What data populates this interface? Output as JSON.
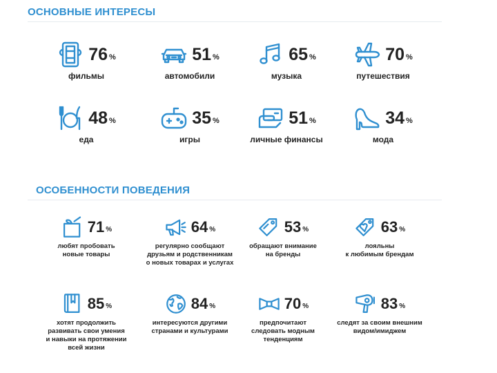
{
  "colors": {
    "accent": "#2f8fd0",
    "text": "#222222"
  },
  "interests": {
    "title": "ОСНОВНЫЕ ИНТЕРЕСЫ",
    "items": [
      {
        "icon": "film-ticket-icon",
        "value": "76",
        "unit": "%",
        "label": "фильмы"
      },
      {
        "icon": "car-icon",
        "value": "51",
        "unit": "%",
        "label": "автомобили"
      },
      {
        "icon": "music-note-icon",
        "value": "65",
        "unit": "%",
        "label": "музыка"
      },
      {
        "icon": "airplane-icon",
        "value": "70",
        "unit": "%",
        "label": "путешествия"
      },
      {
        "icon": "plate-fork-knife-icon",
        "value": "48",
        "unit": "%",
        "label": "еда"
      },
      {
        "icon": "gamepad-icon",
        "value": "35",
        "unit": "%",
        "label": "игры"
      },
      {
        "icon": "money-icon",
        "value": "51",
        "unit": "%",
        "label": "личные финансы"
      },
      {
        "icon": "high-heel-icon",
        "value": "34",
        "unit": "%",
        "label": "мода"
      }
    ]
  },
  "behavior": {
    "title": "ОСОБЕННОСТИ ПОВЕДЕНИЯ",
    "items": [
      {
        "icon": "gift-box-icon",
        "value": "71",
        "unit": "%",
        "label": "любят пробовать\nновые товары"
      },
      {
        "icon": "megaphone-icon",
        "value": "64",
        "unit": "%",
        "label": "регулярно сообщают\nдрузьям и родственникам\nо новых товарах и услугах"
      },
      {
        "icon": "price-tag-icon",
        "value": "53",
        "unit": "%",
        "label": "обращают внимание\nна бренды"
      },
      {
        "icon": "heart-tag-icon",
        "value": "63",
        "unit": "%",
        "label": "лояльны\nк любимым брендам"
      },
      {
        "icon": "book-icon",
        "value": "85",
        "unit": "%",
        "label": "хотят продолжить\nразвивать свои умения\nи навыки на протяжении\nвсей жизни"
      },
      {
        "icon": "globe-icon",
        "value": "84",
        "unit": "%",
        "label": "интересуются другими\nстранами и культурами"
      },
      {
        "icon": "bow-tie-icon",
        "value": "70",
        "unit": "%",
        "label": "предпочитают\nследовать модным\nтенденциям"
      },
      {
        "icon": "hair-dryer-icon",
        "value": "83",
        "unit": "%",
        "label": "следят за своим внешним\nвидом/имиджем"
      }
    ]
  }
}
